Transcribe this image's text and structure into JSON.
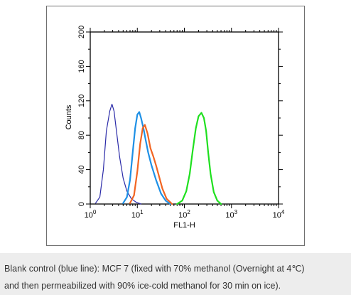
{
  "chart_data": {
    "type": "line",
    "xlabel": "FL1-H",
    "ylabel": "Counts",
    "xscale": "log",
    "xlim": [
      1,
      10000
    ],
    "ylim": [
      0,
      200
    ],
    "x_tick_base": "10",
    "x_tick_exponents": [
      "0",
      "1",
      "2",
      "3",
      "4"
    ],
    "y_ticks": [
      "0",
      "40",
      "80",
      "120",
      "160",
      "200"
    ],
    "grid": false,
    "series": [
      {
        "color": "#2a2aa8",
        "x": [
          1.3,
          1.6,
          1.9,
          2.2,
          2.6,
          2.9,
          3.2,
          3.6,
          4.2,
          5.0,
          6.0,
          7.5,
          9.5,
          12
        ],
        "y": [
          1,
          8,
          40,
          85,
          108,
          116,
          108,
          85,
          55,
          30,
          15,
          6,
          2,
          0
        ]
      },
      {
        "color": "#1e90e6",
        "x": [
          5.0,
          6.0,
          7.0,
          8.0,
          9.0,
          10.0,
          11.0,
          12.0,
          13.5,
          15.0,
          17.0,
          20.0,
          25.0,
          32.0,
          40.0,
          50.0
        ],
        "y": [
          1,
          8,
          28,
          60,
          88,
          104,
          107,
          100,
          88,
          75,
          60,
          45,
          28,
          12,
          4,
          0
        ]
      },
      {
        "color": "#f26522",
        "x": [
          7.0,
          8.5,
          10.0,
          11.5,
          13.0,
          14.5,
          16.5,
          19.0,
          22.0,
          25.0,
          29.0,
          34.0,
          42.0,
          55.0
        ],
        "y": [
          1,
          10,
          38,
          70,
          88,
          92,
          82,
          65,
          55,
          45,
          32,
          18,
          6,
          0
        ]
      },
      {
        "color": "#1fe01f",
        "x": [
          70,
          90,
          110,
          130,
          150,
          175,
          200,
          230,
          260,
          290,
          320,
          360,
          420,
          500,
          600
        ],
        "y": [
          0,
          4,
          15,
          35,
          62,
          88,
          102,
          106,
          100,
          85,
          60,
          35,
          14,
          4,
          0
        ]
      }
    ]
  },
  "caption": {
    "line1": "Blank control (blue line): MCF 7 (fixed with 70% methanol (Overnight at 4℃)",
    "line2": "and then permeabilized with 90% ice-cold methanol for 30 min on ice)."
  }
}
